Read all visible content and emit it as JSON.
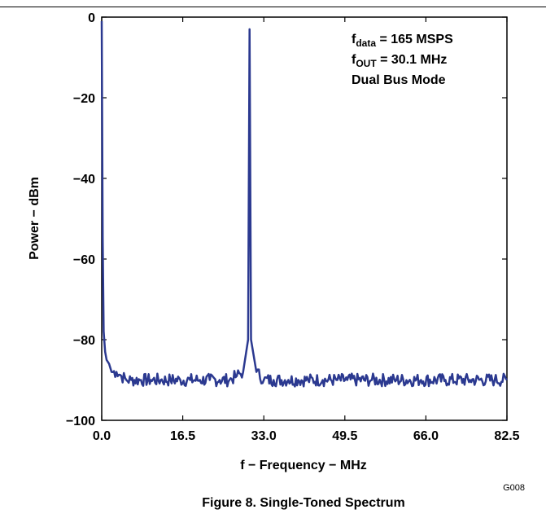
{
  "chart_data": {
    "type": "line",
    "title": "",
    "xlabel": "f − Frequency − MHz",
    "ylabel": "Power − dBm",
    "xlim": [
      0,
      82.5
    ],
    "ylim": [
      -100,
      0
    ],
    "x_ticks": [
      "0.0",
      "16.5",
      "33.0",
      "49.5",
      "66.0",
      "82.5"
    ],
    "y_ticks": [
      "0",
      "−20",
      "−40",
      "−60",
      "−80",
      "−100"
    ],
    "grid": false,
    "line_color": "#2B3990",
    "series": [
      {
        "x": [
          0.0,
          0.2,
          0.4,
          0.7,
          1.0,
          1.5,
          2.0,
          3.0,
          4.0,
          5.0,
          6.0,
          8.0,
          10.0,
          12.0,
          14.0,
          16.0,
          18.0,
          20.0,
          22.0,
          24.0,
          26.0,
          27.5,
          28.8,
          29.8,
          30.1,
          30.4,
          31.5,
          33.0,
          35.0,
          38.0,
          40.0,
          42.0,
          45.0,
          48.0,
          50.0,
          55.0,
          60.0,
          65.0,
          70.0,
          75.0,
          80.0,
          82.5
        ],
        "y": [
          -1,
          -55,
          -78,
          -83,
          -85,
          -86,
          -88,
          -88,
          -89,
          -90,
          -90,
          -90,
          -90,
          -90,
          -90,
          -90,
          -90,
          -90,
          -90,
          -90,
          -90,
          -89,
          -88,
          -80,
          -3,
          -80,
          -88,
          -90,
          -90,
          -90,
          -90,
          -90,
          -90,
          -90,
          -90,
          -90,
          -90,
          -90,
          -90,
          -90,
          -90,
          -90
        ]
      }
    ],
    "annotations": [
      "f_data = 165 MSPS",
      "f_OUT = 30.1 MHz",
      "Dual Bus Mode"
    ],
    "code": "G008"
  },
  "annotation": {
    "line1_main": "f",
    "line1_sub": "data",
    "line1_rest": " = 165 MSPS",
    "line2_main": "f",
    "line2_sub": "OUT",
    "line2_rest": " = 30.1 MHz",
    "line3": "Dual Bus Mode"
  },
  "figure": {
    "code": "G008",
    "caption": "Figure 8. Single-Toned Spectrum"
  }
}
